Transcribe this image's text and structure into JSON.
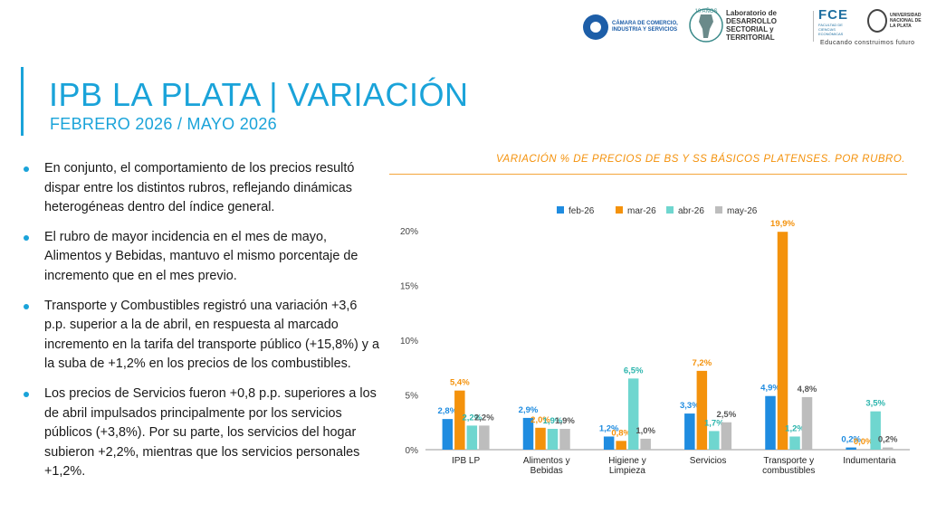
{
  "header": {
    "ccis_text": "CÁMARA DE COMERCIO, INDUSTRIA Y SERVICIOS",
    "lab_badge": "10 AÑOS",
    "lab_text": "Laboratorio de DESARROLLO SECTORIAL y TERRITORIAL",
    "fce_text": "FCE",
    "fce_sub": "FACULTAD DE CIENCIAS ECONÓMICAS",
    "unlp_text": "UNIVERSIDAD NACIONAL DE LA PLATA",
    "tagline": "Educando construimos futuro"
  },
  "page": {
    "title": "IPB LA PLATA | VARIACIÓN",
    "subtitle": "FEBRERO 2026 / MAYO 2026"
  },
  "bullets": [
    "En conjunto, el comportamiento de los precios resultó dispar entre los distintos rubros, reflejando dinámicas heterogéneas dentro del índice general.",
    "El rubro de mayor incidencia en el mes de mayo, Alimentos y Bebidas, mantuvo el mismo porcentaje de incremento que en el mes previo.",
    "Transporte y Combustibles registró una variación +3,6 p.p. superior a la de abril, en respuesta al marcado incremento en la tarifa del transporte público (+15,8%) y a la suba de +1,2% en los precios de los combustibles.",
    "Los precios de Servicios fueron +0,8 p.p. superiores a los de abril impulsados principalmente por los servicios públicos (+3,8%). Por su parte, los servicios del hogar subieron +2,2%, mientras que los servicios personales +1,2%."
  ],
  "colors": {
    "accent": "#1aa3d9",
    "chart_title": "#f4920c"
  },
  "chart_data": {
    "type": "bar",
    "title": "VARIACIÓN % DE PRECIOS DE BS Y SS BÁSICOS PLATENSES. POR RUBRO.",
    "categories": [
      [
        "IPB LP"
      ],
      [
        "Alimentos y",
        "Bebidas"
      ],
      [
        "Higiene y",
        "Limpieza"
      ],
      [
        "Servicios"
      ],
      [
        "Transporte y",
        "combustibles"
      ],
      [
        "Indumentaria"
      ]
    ],
    "series": [
      {
        "name": "feb-26",
        "color": "#1f8ce0",
        "labelColor": "#1f8ce0",
        "values": [
          2.8,
          2.9,
          1.2,
          3.3,
          4.9,
          0.2
        ],
        "labels": [
          "2,8%",
          "2,9%",
          "1,2%",
          "3,3%",
          "4,9%",
          "0,2%"
        ]
      },
      {
        "name": "mar-26",
        "color": "#f4920c",
        "labelColor": "#f4920c",
        "values": [
          5.4,
          2.0,
          0.8,
          7.2,
          19.9,
          0.0
        ],
        "labels": [
          "5,4%",
          "2,0%",
          "0,8%",
          "7,2%",
          "19,9%",
          "0,0%"
        ]
      },
      {
        "name": "abr-26",
        "color": "#6fd6cf",
        "labelColor": "#2cb5ad",
        "values": [
          2.2,
          1.9,
          6.5,
          1.7,
          1.2,
          3.5
        ],
        "labels": [
          "2,2%",
          "1,9%",
          "6,5%",
          "1,7%",
          "1,2%",
          "3,5%"
        ]
      },
      {
        "name": "may-26",
        "color": "#bdbdbd",
        "labelColor": "#555555",
        "values": [
          2.2,
          1.9,
          1.0,
          2.5,
          4.8,
          0.2
        ],
        "labels": [
          "2,2%",
          "1,9%",
          "1,0%",
          "2,5%",
          "4,8%",
          "0,2%"
        ]
      }
    ],
    "ylim": [
      0,
      20
    ],
    "yticks": [
      0,
      5,
      10,
      15,
      20
    ],
    "ytick_labels": [
      "0%",
      "5%",
      "10%",
      "15%",
      "20%"
    ],
    "grid": false,
    "legend": "top"
  }
}
